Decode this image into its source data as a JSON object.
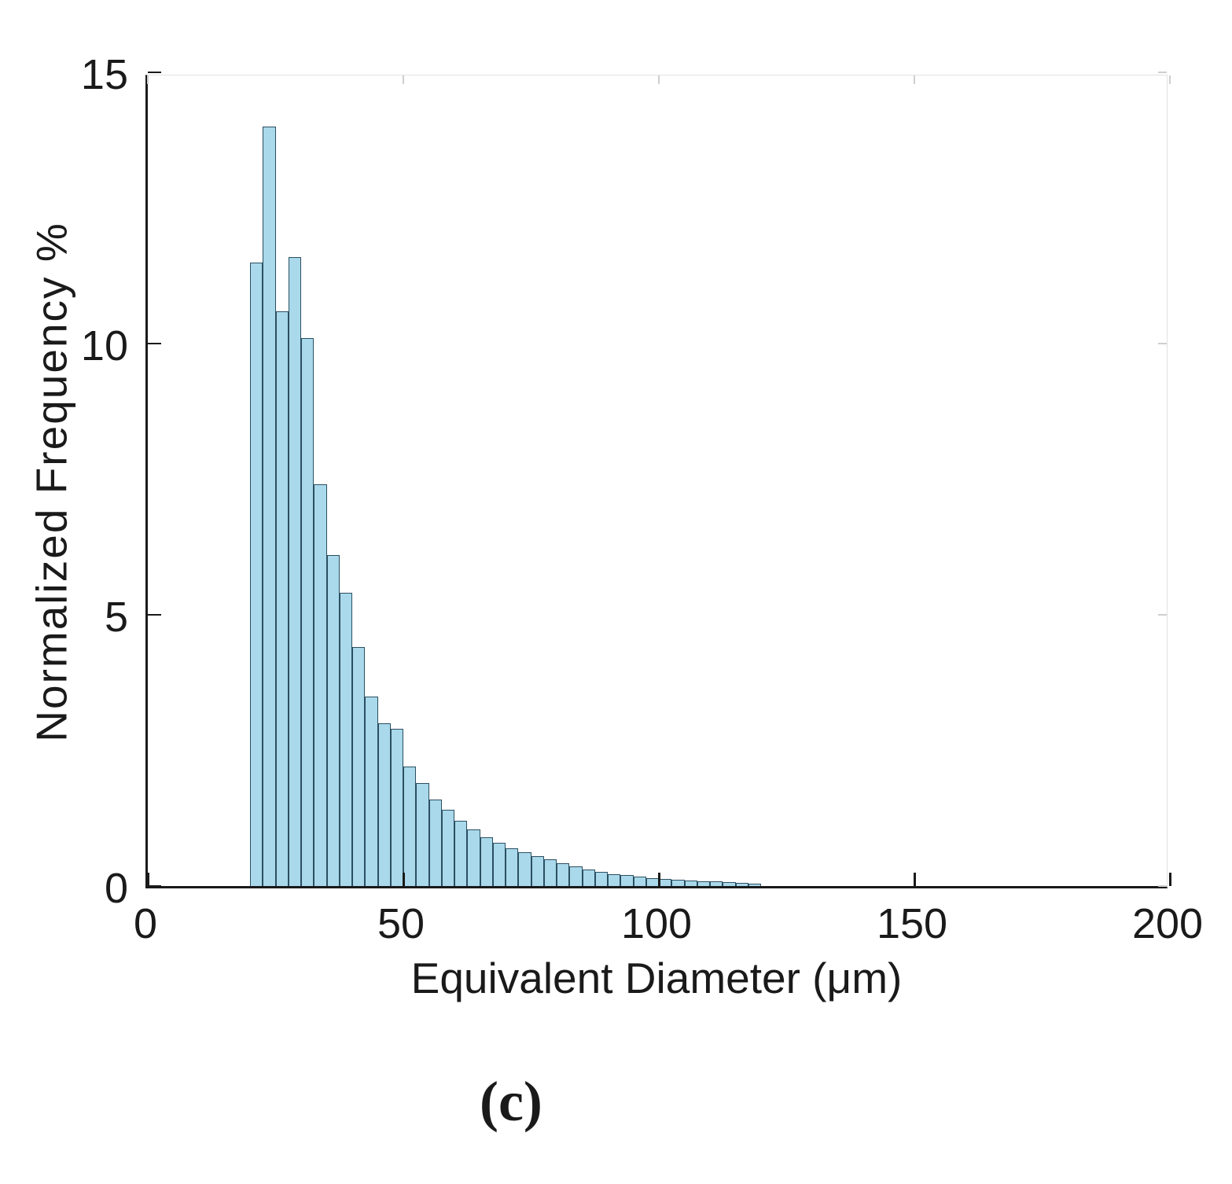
{
  "figure": {
    "caption": "(c)"
  },
  "chart_data": {
    "type": "bar",
    "subtype": "histogram",
    "title": "",
    "xlabel": "Equivalent Diameter (μm)",
    "ylabel": "Normalized  Frequency %",
    "xlim": [
      0,
      200
    ],
    "ylim": [
      0,
      15
    ],
    "xticks": [
      0,
      50,
      100,
      150,
      200
    ],
    "yticks": [
      0,
      5,
      10,
      15
    ],
    "grid": false,
    "legend_position": "none",
    "bar_fill": "#a9d9ea",
    "bar_edge": "#2b4f61",
    "bin_start": 20,
    "bin_width": 2.5,
    "values": [
      11.5,
      14.0,
      10.6,
      11.6,
      10.1,
      7.4,
      6.1,
      5.4,
      4.4,
      3.5,
      3.0,
      2.9,
      2.2,
      1.9,
      1.6,
      1.4,
      1.2,
      1.05,
      0.9,
      0.8,
      0.7,
      0.62,
      0.55,
      0.5,
      0.42,
      0.36,
      0.3,
      0.26,
      0.22,
      0.2,
      0.17,
      0.15,
      0.13,
      0.12,
      0.1,
      0.09,
      0.08,
      0.07,
      0.06,
      0.05
    ]
  }
}
